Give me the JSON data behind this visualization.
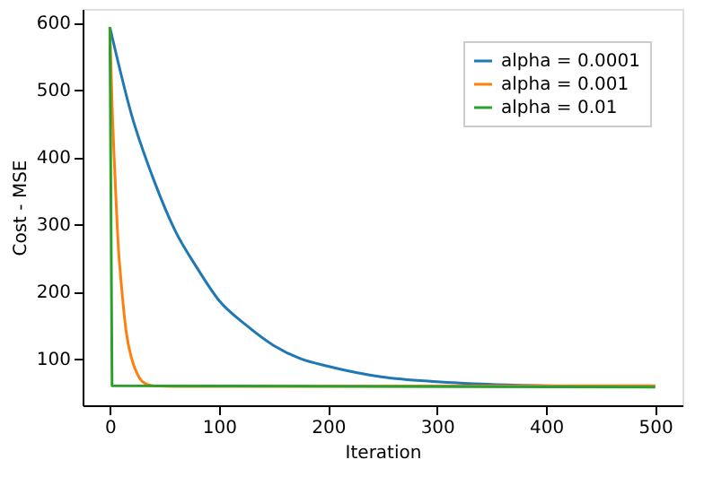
{
  "chart_data": {
    "type": "line",
    "xlabel": "Iteration",
    "ylabel": "Cost - MSE",
    "xlim": [
      -25,
      525
    ],
    "xticks": [
      0,
      100,
      200,
      300,
      400,
      500
    ],
    "ylim": [
      31,
      620
    ],
    "yticks": [
      100,
      200,
      300,
      400,
      500,
      600
    ],
    "grid": false,
    "legend": "top right",
    "marker": "none",
    "line_style": "solid",
    "series": [
      {
        "name": "alpha = 0.0001",
        "color": "#1f77b4",
        "x": [
          0,
          20,
          40,
          60,
          80,
          100,
          125,
          150,
          175,
          200,
          250,
          300,
          350,
          400,
          450,
          500
        ],
        "values": [
          593,
          462,
          367,
          290,
          235,
          187,
          150,
          120,
          100,
          89,
          73,
          66,
          62,
          60,
          59,
          59
        ]
      },
      {
        "name": "alpha = 0.001",
        "color": "#ff7f0e",
        "x": [
          0,
          2,
          5,
          8,
          10,
          15,
          20,
          25,
          30,
          40,
          60,
          500
        ],
        "values": [
          593,
          480,
          360,
          260,
          220,
          140,
          100,
          78,
          66,
          60,
          59,
          60
        ]
      },
      {
        "name": "alpha = 0.01",
        "color": "#2ca02c",
        "x": [
          0,
          2,
          500
        ],
        "values": [
          593,
          60,
          58
        ]
      }
    ]
  }
}
